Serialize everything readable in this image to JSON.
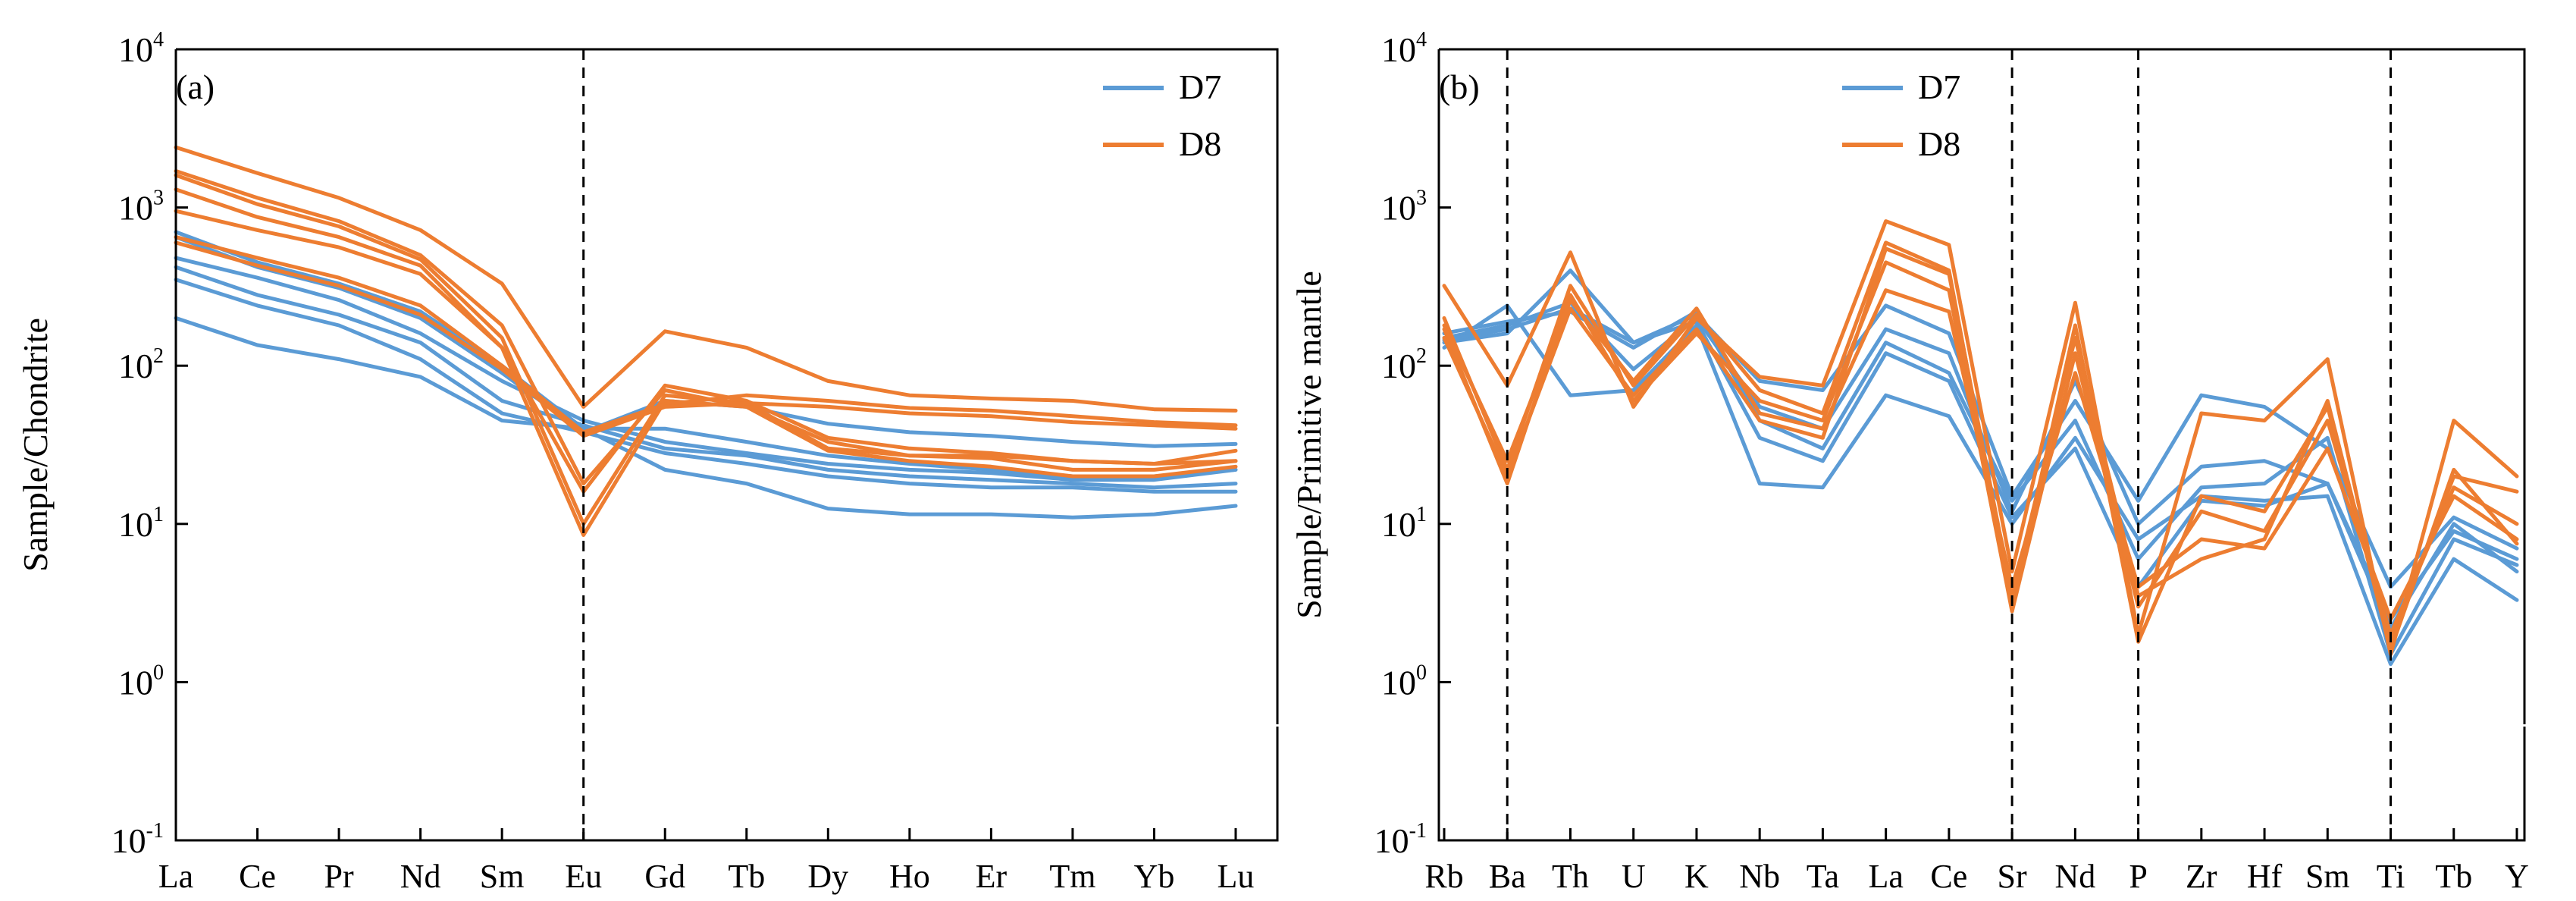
{
  "colors": {
    "D7": "#5b9bd5",
    "D8": "#ed7d31",
    "axis": "#000000"
  },
  "chart_data": [
    {
      "type": "line",
      "panel_label": "(a)",
      "ylabel": "Sample/Chondrite",
      "yscale": "log",
      "ylim": [
        0.1,
        10000
      ],
      "y_ticks": [
        {
          "base": "10",
          "exp": "-1",
          "value": 0.1
        },
        {
          "base": "10",
          "exp": "0",
          "value": 1
        },
        {
          "base": "10",
          "exp": "1",
          "value": 10
        },
        {
          "base": "10",
          "exp": "2",
          "value": 100
        },
        {
          "base": "10",
          "exp": "3",
          "value": 1000
        },
        {
          "base": "10",
          "exp": "4",
          "value": 10000
        }
      ],
      "categories": [
        "La",
        "Ce",
        "Pr",
        "Nd",
        "Sm",
        "Eu",
        "Gd",
        "Tb",
        "Dy",
        "Ho",
        "Er",
        "Tm",
        "Yb",
        "Lu"
      ],
      "dashed_after": [
        "Eu"
      ],
      "legend": [
        {
          "name": "D7",
          "color": "#5b9bd5"
        },
        {
          "name": "D8",
          "color": "#ed7d31"
        }
      ],
      "series": [
        {
          "group": "D7",
          "values": [
            700,
            450,
            330,
            220,
            100,
            40,
            40,
            33,
            27,
            24,
            22,
            20,
            20,
            22
          ]
        },
        {
          "group": "D7",
          "values": [
            480,
            360,
            260,
            160,
            80,
            45,
            33,
            28,
            24,
            22,
            21,
            19,
            19,
            22
          ]
        },
        {
          "group": "D7",
          "values": [
            420,
            280,
            210,
            140,
            60,
            42,
            30,
            27,
            22,
            20,
            19,
            18,
            17,
            18
          ]
        },
        {
          "group": "D7",
          "values": [
            350,
            240,
            180,
            110,
            50,
            38,
            28,
            24,
            20,
            18,
            17,
            17,
            16,
            16
          ]
        },
        {
          "group": "D7",
          "values": [
            200,
            135,
            110,
            85,
            45,
            40,
            22,
            18,
            12.5,
            11.5,
            11.5,
            11,
            11.5,
            13
          ]
        },
        {
          "group": "D7",
          "values": [
            650,
            420,
            310,
            200,
            90,
            38,
            60,
            55,
            43,
            38,
            36,
            33,
            31,
            32
          ]
        },
        {
          "group": "D8",
          "values": [
            2400,
            1650,
            1150,
            720,
            330,
            55,
            165,
            130,
            80,
            65,
            62,
            60,
            53,
            52
          ]
        },
        {
          "group": "D8",
          "values": [
            1700,
            1150,
            820,
            500,
            180,
            18,
            70,
            55,
            33,
            27,
            27,
            25,
            24,
            29
          ]
        },
        {
          "group": "D8",
          "values": [
            1600,
            1050,
            760,
            470,
            150,
            10,
            65,
            58,
            30,
            27,
            26,
            22,
            22,
            25
          ]
        },
        {
          "group": "D8",
          "values": [
            1300,
            870,
            650,
            430,
            130,
            8.5,
            60,
            55,
            29,
            25,
            23,
            20,
            20,
            23
          ]
        },
        {
          "group": "D8",
          "values": [
            950,
            720,
            560,
            380,
            130,
            16,
            75,
            60,
            35,
            30,
            28,
            25,
            24,
            25
          ]
        },
        {
          "group": "D8",
          "values": [
            650,
            480,
            360,
            240,
            100,
            38,
            57,
            65,
            60,
            54,
            52,
            48,
            44,
            42
          ]
        },
        {
          "group": "D8",
          "values": [
            600,
            430,
            320,
            210,
            95,
            36,
            55,
            58,
            55,
            50,
            48,
            44,
            42,
            40
          ]
        }
      ]
    },
    {
      "type": "line",
      "panel_label": "(b)",
      "ylabel": "Sample/Primitive mantle",
      "yscale": "log",
      "ylim": [
        0.1,
        10000
      ],
      "y_ticks": [
        {
          "base": "10",
          "exp": "-1",
          "value": 0.1
        },
        {
          "base": "10",
          "exp": "0",
          "value": 1
        },
        {
          "base": "10",
          "exp": "1",
          "value": 10
        },
        {
          "base": "10",
          "exp": "2",
          "value": 100
        },
        {
          "base": "10",
          "exp": "3",
          "value": 1000
        },
        {
          "base": "10",
          "exp": "4",
          "value": 10000
        }
      ],
      "categories": [
        "Rb",
        "Ba",
        "Th",
        "U",
        "K",
        "Nb",
        "Ta",
        "La",
        "Ce",
        "Sr",
        "Nd",
        "P",
        "Zr",
        "Hf",
        "Sm",
        "Ti",
        "Tb",
        "Y"
      ],
      "dashed_after": [
        "Ba",
        "Sr",
        "P",
        "Ti"
      ],
      "legend": [
        {
          "name": "D7",
          "color": "#5b9bd5"
        },
        {
          "name": "D8",
          "color": "#ed7d31"
        }
      ],
      "series": [
        {
          "group": "D7",
          "values": [
            140,
            160,
            400,
            140,
            210,
            80,
            70,
            240,
            160,
            15,
            60,
            14,
            65,
            55,
            30,
            4,
            11,
            7
          ]
        },
        {
          "group": "D7",
          "values": [
            150,
            180,
            250,
            95,
            200,
            55,
            40,
            170,
            120,
            12,
            80,
            10,
            23,
            25,
            18,
            2.5,
            9,
            6
          ]
        },
        {
          "group": "D7",
          "values": [
            130,
            240,
            65,
            70,
            180,
            18,
            17,
            65,
            48,
            10,
            35,
            8,
            15,
            14,
            15,
            1.3,
            6,
            3.3
          ]
        },
        {
          "group": "D7",
          "values": [
            160,
            190,
            220,
            130,
            220,
            45,
            30,
            140,
            90,
            14,
            45,
            6,
            17,
            18,
            35,
            1.5,
            8,
            5.5
          ]
        },
        {
          "group": "D7",
          "values": [
            145,
            170,
            230,
            140,
            190,
            35,
            25,
            120,
            80,
            11,
            30,
            4,
            14,
            13,
            18,
            2.2,
            10,
            5
          ]
        },
        {
          "group": "D8",
          "values": [
            320,
            75,
            520,
            55,
            200,
            85,
            75,
            820,
            580,
            5,
            250,
            2,
            50,
            45,
            110,
            1.5,
            45,
            20
          ]
        },
        {
          "group": "D8",
          "values": [
            200,
            22,
            320,
            75,
            210,
            70,
            50,
            600,
            400,
            3,
            180,
            1.8,
            15,
            12,
            55,
            1.8,
            20,
            16
          ]
        },
        {
          "group": "D8",
          "values": [
            170,
            18,
            280,
            60,
            160,
            60,
            45,
            450,
            300,
            2.8,
            120,
            3,
            12,
            9,
            45,
            2,
            17,
            10
          ]
        },
        {
          "group": "D8",
          "values": [
            180,
            25,
            260,
            80,
            230,
            50,
            40,
            300,
            220,
            4,
            90,
            4,
            8,
            7,
            30,
            2.5,
            15,
            8
          ]
        },
        {
          "group": "D8",
          "values": [
            150,
            20,
            230,
            65,
            170,
            45,
            35,
            550,
            380,
            3.5,
            150,
            3.5,
            6,
            8,
            60,
            1.6,
            22,
            7.5
          ]
        }
      ]
    }
  ]
}
